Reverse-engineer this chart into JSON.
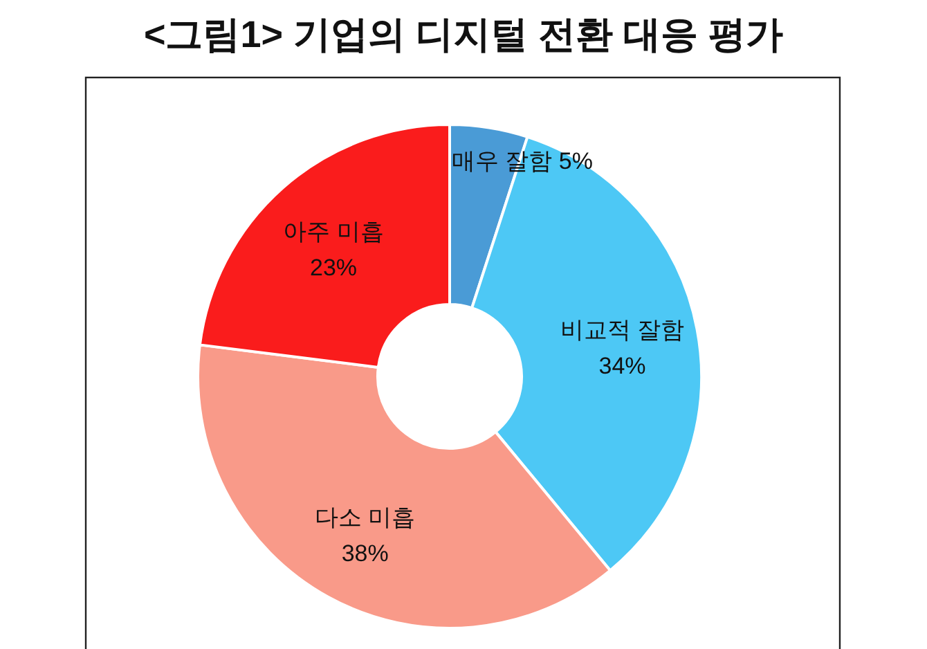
{
  "chart_data": {
    "type": "donut",
    "title": "<그림1> 기업의 디지털 전환 대응 평가",
    "categories": [
      "매우 잘함",
      "비교적 잘함",
      "다소 미흡",
      "아주 미흡"
    ],
    "values": [
      5,
      34,
      38,
      23
    ],
    "value_labels": [
      "5%",
      "34%",
      "38%",
      "23%"
    ],
    "colors": [
      "#4a9bd6",
      "#4dc8f5",
      "#f99a89",
      "#fa1c1c"
    ]
  }
}
